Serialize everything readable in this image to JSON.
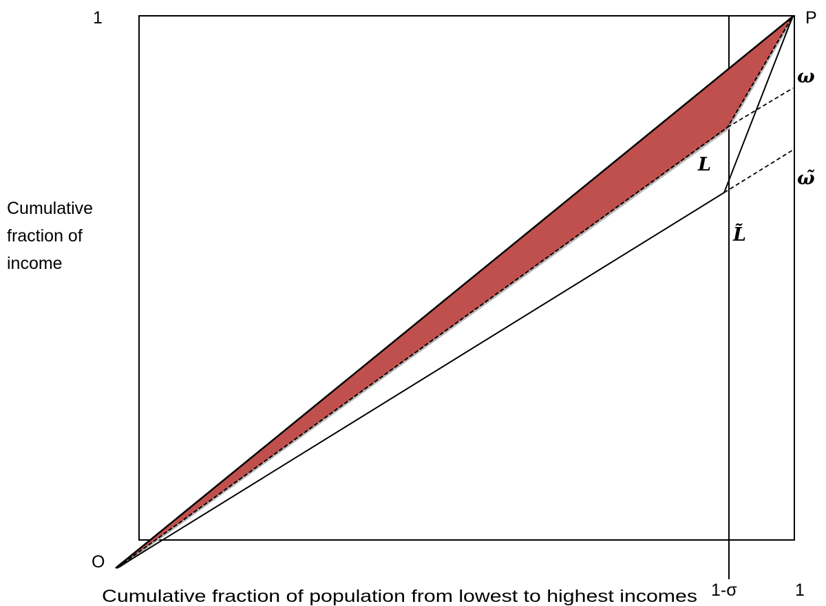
{
  "labels": {
    "origin": "O",
    "top_left_one": "1",
    "corner_p": "P",
    "bottom_right_one": "1",
    "one_minus_sigma": "1-σ",
    "x_axis_label": "Cumulative fraction of population from lowest to highest incomes",
    "y_axis_label_lines": [
      "Cumulative",
      "fraction of",
      "income"
    ],
    "curve_l": "L",
    "curve_l_tilde": "L̃",
    "omega": "ω",
    "omega_tilde": "ω̃"
  },
  "colors": {
    "shaded_area": "#c0504d",
    "shaded_edge": "#b8b8b8",
    "lines": "#000000"
  }
}
